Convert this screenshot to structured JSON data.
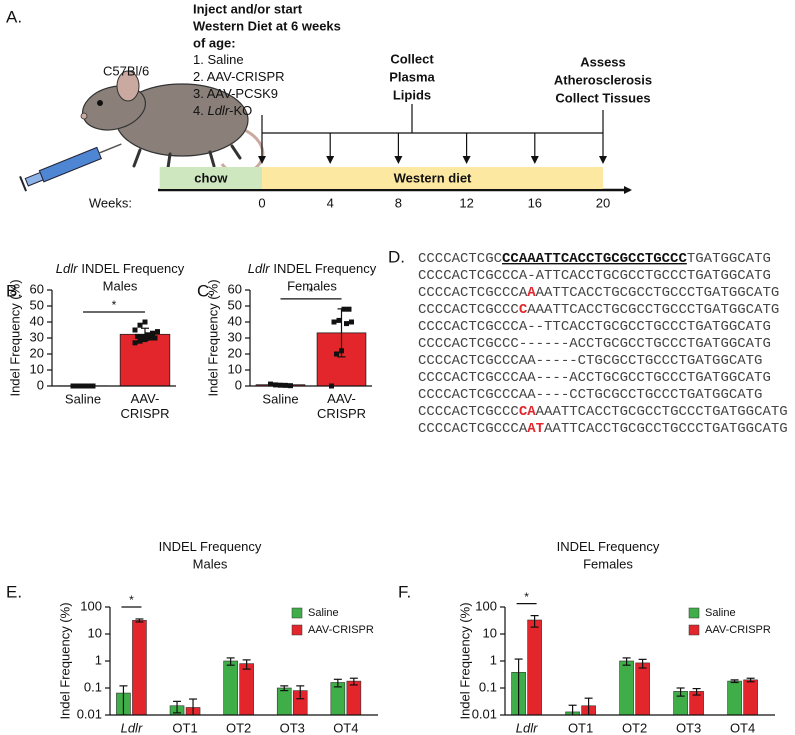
{
  "timeline": {
    "label": "A.",
    "strain": "C57Bl/6",
    "injection": {
      "heading": [
        "Inject and/or start",
        "Western Diet at 6 weeks",
        "of age:"
      ],
      "items": [
        {
          "text": "1. Saline"
        },
        {
          "text": "2. AAV-CRISPR"
        },
        {
          "text": "3. AAV-PCSK9"
        },
        {
          "text": "4. ",
          "italic": "Ldlr",
          "suffix": "-KO"
        }
      ]
    },
    "events": [
      {
        "lines": [
          "Collect",
          "Plasma",
          "Lipids"
        ]
      },
      {
        "lines": [
          "Assess",
          "Atherosclerosis",
          "Collect Tissues"
        ]
      }
    ],
    "phases": [
      {
        "label": "chow",
        "start": -6,
        "end": 0,
        "color": "#cfe7bf"
      },
      {
        "label": "Western diet",
        "start": 0,
        "end": 20,
        "color": "#fde8a2"
      }
    ],
    "axis_label": "Weeks:",
    "ticks": [
      0,
      4,
      8,
      12,
      16,
      20
    ]
  },
  "sequences": {
    "label": "D.",
    "lines": [
      [
        {
          "text": "CCCCACTCGC",
          "style": "plain"
        },
        {
          "text": "CCAAATTCACCTGCGCCTGCCC",
          "style": "guide"
        },
        {
          "text": "TGATGGCATG",
          "style": "plain"
        }
      ],
      [
        {
          "text": "CCCCACTCGCCCA-ATTCACCTGCGCCTGCCCTGATGGCATG",
          "style": "plain"
        }
      ],
      [
        {
          "text": "CCCCACTCGCCCA",
          "style": "plain"
        },
        {
          "text": "A",
          "style": "insert"
        },
        {
          "text": "AATTCACCTGCGCCTGCCCTGATGGCATG",
          "style": "plain"
        }
      ],
      [
        {
          "text": "CCCCACTCGCCC",
          "style": "plain"
        },
        {
          "text": "C",
          "style": "insert"
        },
        {
          "text": "AAATTCACCTGCGCCTGCCCTGATGGCATG",
          "style": "plain"
        }
      ],
      [
        {
          "text": "CCCCACTCGCCCA--TTCACCTGCGCCTGCCCTGATGGCATG",
          "style": "plain"
        }
      ],
      [
        {
          "text": "CCCCACTCGCCC------ACCTGCGCCTGCCCTGATGGCATG",
          "style": "plain"
        }
      ],
      [
        {
          "text": "CCCCACTCGCCCAA-----CTGCGCCTGCCCTGATGGCATG",
          "style": "plain"
        }
      ],
      [
        {
          "text": "CCCCACTCGCCCAA----ACCTGCGCCTGCCCTGATGGCATG",
          "style": "plain"
        }
      ],
      [
        {
          "text": "CCCCACTCGCCCAA----CCTGCGCCTGCCCTGATGGCATG",
          "style": "plain"
        }
      ],
      [
        {
          "text": "CCCCACTCGCCC",
          "style": "plain"
        },
        {
          "text": "CA",
          "style": "insert"
        },
        {
          "text": "AAATTCACCTGCGCCTGCCCTGATGGCATG",
          "style": "plain"
        }
      ],
      [
        {
          "text": "CCCCACTCGCCCA",
          "style": "plain"
        },
        {
          "text": "AT",
          "style": "insert"
        },
        {
          "text": "AATTCACCTGCGCCTGCCCTGATGGCATG",
          "style": "plain"
        }
      ]
    ]
  },
  "chart_data": [
    {
      "type": "bar",
      "panel": "B.",
      "title": [
        {
          "text": "Ldlr",
          "italic": true
        },
        {
          "text": "INDEL Frequency"
        }
      ],
      "subtitle": "Males",
      "ylabel": "Indel Frequency (%)",
      "categories": [
        "Saline",
        "AAV-CRISPR"
      ],
      "values": [
        0.1,
        32.3
      ],
      "errors": [
        0.1,
        3.8
      ],
      "points": [
        [
          0,
          0,
          0,
          0,
          0
        ],
        [
          27,
          28,
          29,
          30,
          30,
          31,
          31,
          32,
          33,
          34,
          35,
          38,
          40
        ]
      ],
      "color": "#e3262b",
      "ylim": [
        0,
        60
      ],
      "yticks": [
        0,
        10,
        20,
        30,
        40,
        50,
        60
      ],
      "significance": {
        "label": "*",
        "categories": [
          0,
          1
        ]
      }
    },
    {
      "type": "bar",
      "panel": "C.",
      "title": [
        {
          "text": "Ldlr",
          "italic": true
        },
        {
          "text": "INDEL Frequency"
        }
      ],
      "subtitle": "Females",
      "ylabel": "Indel Frequency (%)",
      "categories": [
        "Saline",
        "AAV-CRISPR"
      ],
      "values": [
        0.8,
        33.2
      ],
      "errors": [
        0.6,
        15
      ],
      "points": [
        [
          1.2,
          0.7,
          0.5,
          0.4,
          0.2
        ],
        [
          0,
          20,
          22,
          39,
          40,
          40,
          41,
          48,
          48
        ]
      ],
      "color": "#e3262b",
      "ylim": [
        0,
        60
      ],
      "yticks": [
        0,
        10,
        20,
        30,
        40,
        50,
        60
      ],
      "significance": {
        "label": "*",
        "categories": [
          0,
          1
        ]
      }
    },
    {
      "type": "bar",
      "panel": "E.",
      "title": [
        {
          "text": "INDEL Frequency"
        }
      ],
      "subtitle": "Males",
      "ylabel": "Indel Frequency (%)",
      "categories": [
        "Ldlr",
        "OT1",
        "OT2",
        "OT3",
        "OT4"
      ],
      "category_italic": [
        true,
        false,
        false,
        false,
        false
      ],
      "series": [
        {
          "name": "Saline",
          "color": "#3fae49",
          "values": [
            0.065,
            0.022,
            1.0,
            0.1,
            0.16
          ],
          "errors": [
            0.055,
            0.01,
            0.3,
            0.02,
            0.05
          ]
        },
        {
          "name": "AAV-CRISPR",
          "color": "#e3262b",
          "values": [
            32,
            0.019,
            0.8,
            0.08,
            0.18
          ],
          "errors": [
            4,
            0.02,
            0.3,
            0.04,
            0.05
          ]
        }
      ],
      "log": true,
      "ylim": [
        0.01,
        100
      ],
      "yticks": [
        0.01,
        0.1,
        1,
        10,
        100
      ],
      "legend": "upper right",
      "significance": {
        "label": "*",
        "category": 0
      }
    },
    {
      "type": "bar",
      "panel": "F.",
      "title": [
        {
          "text": "INDEL Frequency"
        }
      ],
      "subtitle": "Females",
      "ylabel": "Indel Frequency (%)",
      "categories": [
        "Ldlr",
        "OT1",
        "OT2",
        "OT3",
        "OT4"
      ],
      "category_italic": [
        true,
        false,
        false,
        false,
        false
      ],
      "series": [
        {
          "name": "Saline",
          "color": "#3fae49",
          "values": [
            0.38,
            0.013,
            1.0,
            0.075,
            0.18
          ],
          "errors": [
            0.8,
            0.01,
            0.3,
            0.025,
            0.02
          ]
        },
        {
          "name": "AAV-CRISPR",
          "color": "#e3262b",
          "values": [
            33,
            0.022,
            0.85,
            0.075,
            0.2
          ],
          "errors": [
            15,
            0.02,
            0.3,
            0.02,
            0.03
          ]
        }
      ],
      "log": true,
      "ylim": [
        0.01,
        100
      ],
      "yticks": [
        0.01,
        0.1,
        1,
        10,
        100
      ],
      "legend": "upper right",
      "significance": {
        "label": "*",
        "category": 0
      }
    }
  ]
}
